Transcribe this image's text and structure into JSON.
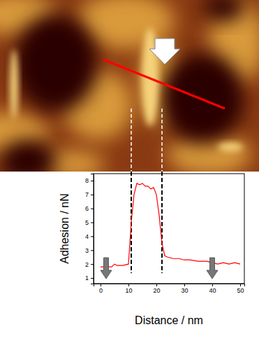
{
  "chart_data": {
    "type": "line",
    "x_label": "Distance / nm",
    "y_label": "Adhesion / nN",
    "x": [
      0,
      2,
      4,
      5,
      6,
      8,
      10,
      11,
      12,
      13,
      14,
      15,
      16,
      17,
      18,
      19,
      20,
      21,
      22,
      23,
      24,
      26,
      28,
      30,
      32,
      35,
      38,
      40,
      42,
      44,
      46,
      48,
      50
    ],
    "values": [
      1.8,
      1.8,
      1.8,
      2.0,
      1.9,
      1.9,
      2.0,
      5.0,
      7.0,
      7.8,
      7.7,
      7.8,
      7.6,
      7.6,
      7.4,
      7.5,
      7.0,
      5.5,
      3.5,
      2.6,
      2.5,
      2.4,
      2.4,
      2.3,
      2.3,
      2.2,
      2.2,
      2.1,
      2.0,
      2.1,
      2.0,
      2.1,
      2.0
    ],
    "color": "#ff0000",
    "xlim": [
      -2.5,
      51.5
    ],
    "ylim": [
      0.6,
      8.5
    ],
    "xticks": [
      0,
      10,
      20,
      30,
      40,
      50
    ],
    "yticks": [
      1,
      2,
      3,
      4,
      5,
      6,
      7,
      8
    ],
    "vlines": [
      11,
      22
    ],
    "arrows_x": [
      2,
      40
    ]
  }
}
